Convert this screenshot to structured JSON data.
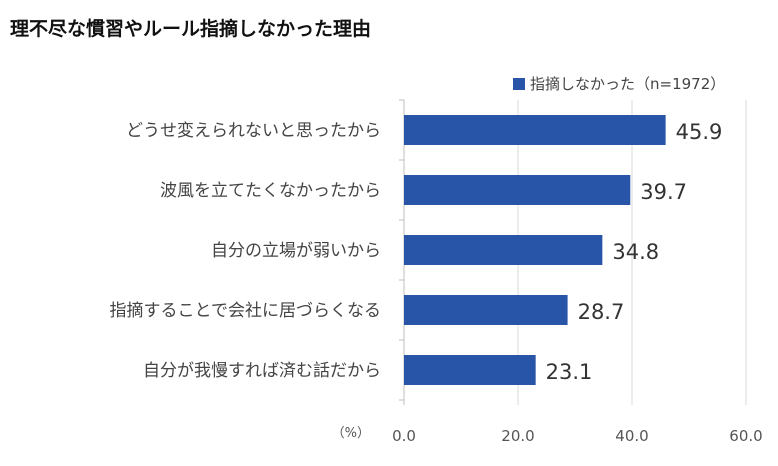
{
  "title": "理不尽な慣習やルール指摘しなかった理由",
  "chart_data": {
    "type": "bar",
    "orientation": "horizontal",
    "categories": [
      "どうせ変えられないと思ったから",
      "波風を立てたくなかったから",
      "自分の立場が弱いから",
      "指摘することで会社に居づらくなる",
      "自分が我慢すれば済む話だから"
    ],
    "series": [
      {
        "name": "指摘しなかった（n=1972）",
        "values": [
          45.9,
          39.7,
          34.8,
          28.7,
          23.1
        ],
        "color": "#2955a8"
      }
    ],
    "value_labels": [
      "45.9",
      "39.7",
      "34.8",
      "28.7",
      "23.1"
    ],
    "x_unit_label": "（%）",
    "x_ticks": [
      "0.0",
      "20.0",
      "40.0",
      "60.0"
    ],
    "xlim": [
      0,
      60
    ],
    "grid": true,
    "legend_position": "top-right"
  }
}
